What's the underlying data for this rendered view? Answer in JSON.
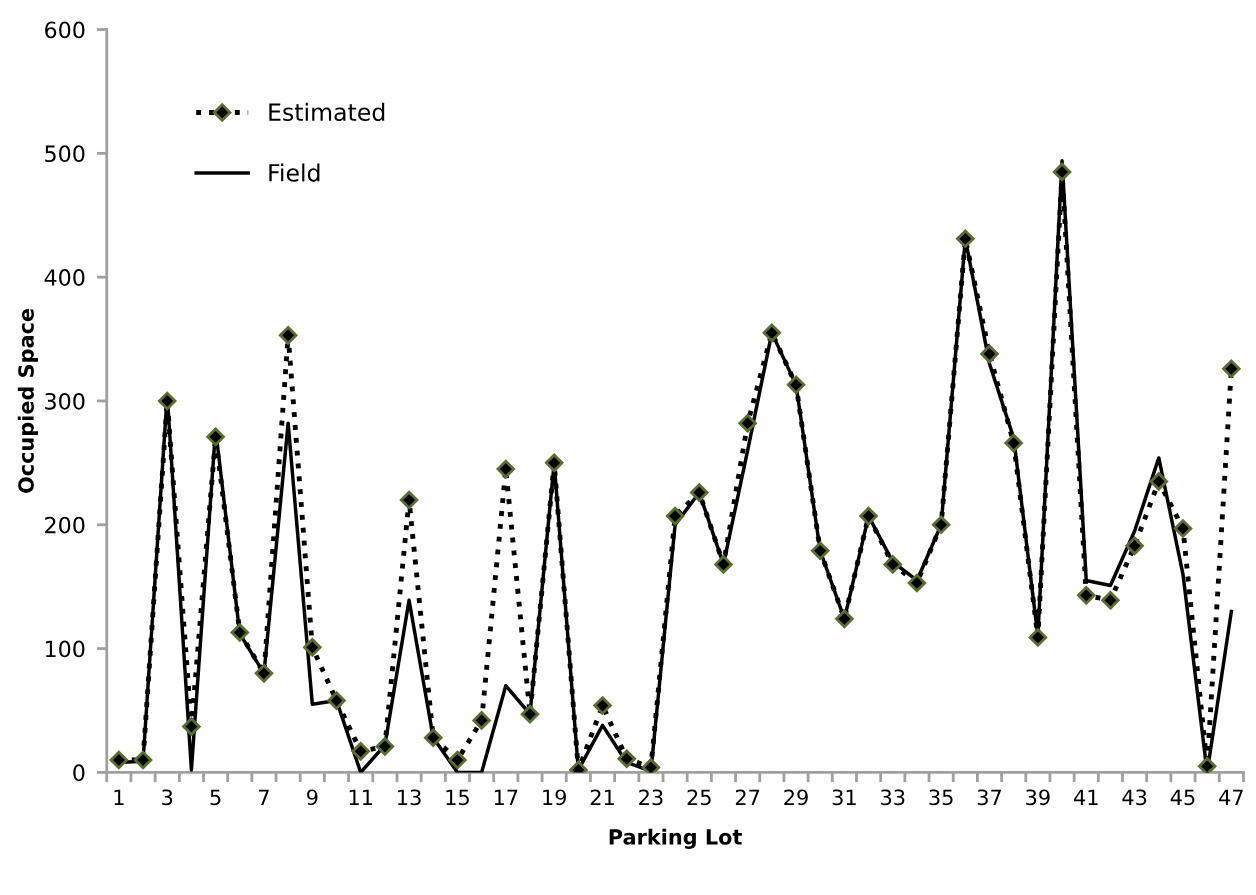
{
  "chart_data": {
    "type": "line",
    "xlabel": "Parking Lot",
    "ylabel": "Occupied Space",
    "categories": [
      "1",
      null,
      "3",
      null,
      "5",
      null,
      "7",
      null,
      "9",
      null,
      "11",
      null,
      "13",
      null,
      "15",
      null,
      "17",
      null,
      "19",
      null,
      "21",
      null,
      "23",
      null,
      "25",
      null,
      "27",
      null,
      "29",
      null,
      "31",
      null,
      "33",
      null,
      "35",
      null,
      "37",
      null,
      "39",
      null,
      "41",
      null,
      "43",
      null,
      "45",
      null,
      "47"
    ],
    "ylim": [
      0,
      600
    ],
    "yticks": [
      0,
      100,
      200,
      300,
      400,
      500,
      600
    ],
    "grid": false,
    "legend": "top left",
    "series": [
      {
        "name": "Estimated",
        "color": "#000000",
        "marker": "diamond",
        "line_style": "dotted",
        "values": [
          10,
          10,
          300,
          37,
          271,
          113,
          80,
          353,
          101,
          58,
          17,
          21,
          220,
          28,
          10,
          42,
          245,
          47,
          250,
          2,
          54,
          11,
          4,
          207,
          226,
          168,
          282,
          355,
          313,
          179,
          124,
          207,
          168,
          153,
          200,
          431,
          338,
          266,
          109,
          485,
          143,
          139,
          183,
          235,
          197,
          5,
          326
        ]
      },
      {
        "name": "Field",
        "color": "#000000",
        "marker": "none",
        "line_style": "solid",
        "values": [
          8,
          9,
          305,
          2,
          277,
          112,
          80,
          282,
          55,
          58,
          0,
          22,
          139,
          28,
          0,
          0,
          70,
          47,
          250,
          2,
          38,
          8,
          1,
          200,
          226,
          168,
          260,
          355,
          313,
          179,
          124,
          207,
          170,
          155,
          200,
          431,
          330,
          270,
          110,
          494,
          155,
          151,
          195,
          254,
          160,
          0,
          130
        ]
      }
    ]
  }
}
